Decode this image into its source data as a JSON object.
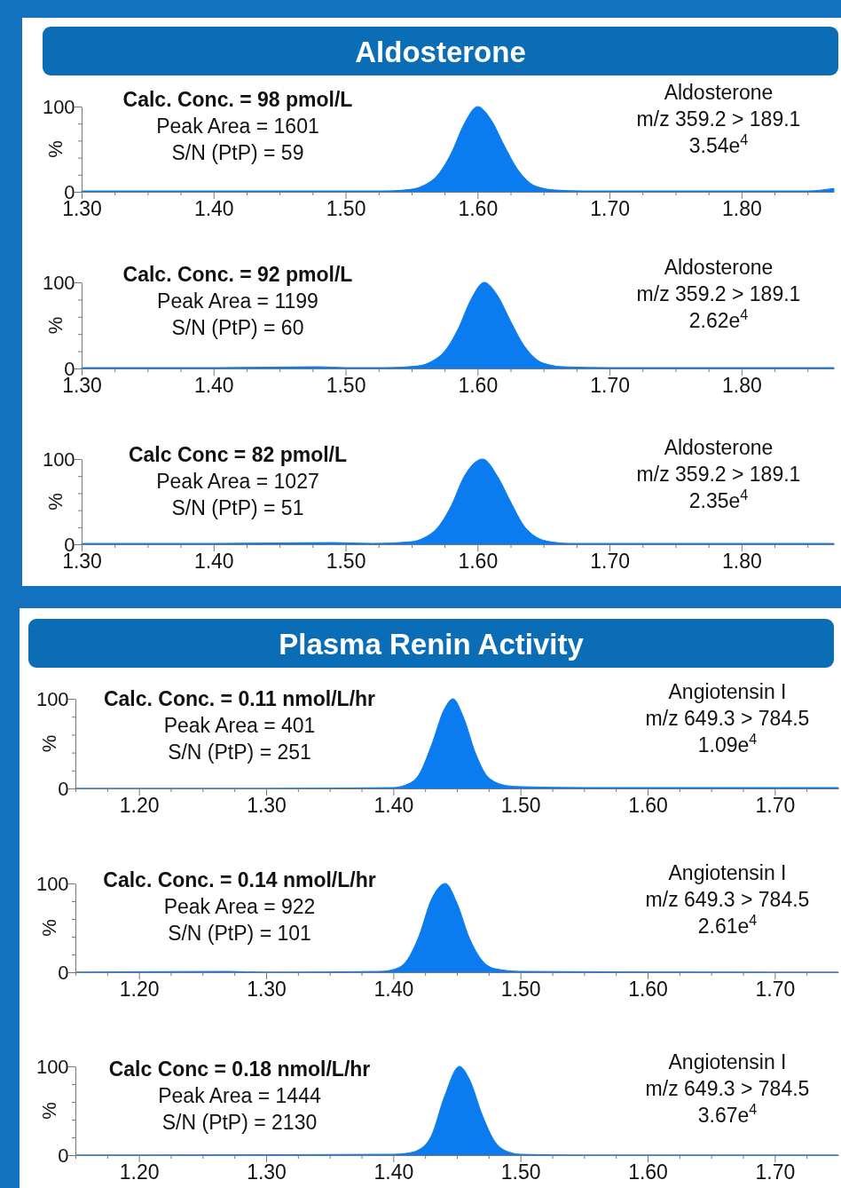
{
  "chart_data": [
    {
      "type": "area",
      "title": "Aldosterone",
      "ylabel": "%",
      "xlim": [
        1.3,
        1.87
      ],
      "ylim": [
        0,
        100
      ],
      "xticks": [
        {
          "value": 1.3,
          "label": "1.30"
        },
        {
          "value": 1.325,
          "label": null
        },
        {
          "value": 1.35,
          "label": null
        },
        {
          "value": 1.375,
          "label": null
        },
        {
          "value": 1.4,
          "label": "1.40"
        },
        {
          "value": 1.425,
          "label": null
        },
        {
          "value": 1.45,
          "label": null
        },
        {
          "value": 1.475,
          "label": null
        },
        {
          "value": 1.5,
          "label": "1.50"
        },
        {
          "value": 1.525,
          "label": null
        },
        {
          "value": 1.55,
          "label": null
        },
        {
          "value": 1.575,
          "label": null
        },
        {
          "value": 1.6,
          "label": "1.60"
        },
        {
          "value": 1.625,
          "label": null
        },
        {
          "value": 1.65,
          "label": null
        },
        {
          "value": 1.675,
          "label": null
        },
        {
          "value": 1.7,
          "label": "1.70"
        },
        {
          "value": 1.725,
          "label": null
        },
        {
          "value": 1.75,
          "label": null
        },
        {
          "value": 1.775,
          "label": null
        },
        {
          "value": 1.8,
          "label": "1.80"
        },
        {
          "value": 1.825,
          "label": null
        },
        {
          "value": 1.85,
          "label": null
        }
      ],
      "yticks": [
        {
          "value": 0,
          "label": "0"
        },
        {
          "value": 20,
          "label": null
        },
        {
          "value": 40,
          "label": null
        },
        {
          "value": 60,
          "label": null
        },
        {
          "value": 80,
          "label": null
        },
        {
          "value": 100,
          "label": "100"
        }
      ],
      "annotations": [
        "Calc. Conc. = 98 pmol/L",
        "Peak Area = 1601",
        "S/N (PtP) = 59",
        "Aldosterone",
        "m/z 359.2 > 189.1",
        "3.54e$^{4}$"
      ],
      "series": [
        {
          "color": "#0b7cf0",
          "x": [
            1.3,
            1.4,
            1.5,
            1.53,
            1.55,
            1.56,
            1.57,
            1.58,
            1.59,
            1.6,
            1.61,
            1.62,
            1.63,
            1.64,
            1.65,
            1.66,
            1.68,
            1.7,
            1.8,
            1.85,
            1.87
          ],
          "values": [
            1,
            1,
            1,
            1,
            3,
            8,
            20,
            45,
            80,
            100,
            85,
            55,
            27,
            10,
            4,
            2,
            1,
            1,
            1,
            1,
            4
          ]
        }
      ]
    },
    {
      "type": "area",
      "ylabel": "%",
      "xlim": [
        1.3,
        1.87
      ],
      "ylim": [
        0,
        100
      ],
      "xticks": [
        {
          "value": 1.3,
          "label": "1.30"
        },
        {
          "value": 1.325,
          "label": null
        },
        {
          "value": 1.35,
          "label": null
        },
        {
          "value": 1.375,
          "label": null
        },
        {
          "value": 1.4,
          "label": "1.40"
        },
        {
          "value": 1.425,
          "label": null
        },
        {
          "value": 1.45,
          "label": null
        },
        {
          "value": 1.475,
          "label": null
        },
        {
          "value": 1.5,
          "label": "1.50"
        },
        {
          "value": 1.525,
          "label": null
        },
        {
          "value": 1.55,
          "label": null
        },
        {
          "value": 1.575,
          "label": null
        },
        {
          "value": 1.6,
          "label": "1.60"
        },
        {
          "value": 1.625,
          "label": null
        },
        {
          "value": 1.65,
          "label": null
        },
        {
          "value": 1.675,
          "label": null
        },
        {
          "value": 1.7,
          "label": "1.70"
        },
        {
          "value": 1.725,
          "label": null
        },
        {
          "value": 1.75,
          "label": null
        },
        {
          "value": 1.775,
          "label": null
        },
        {
          "value": 1.8,
          "label": "1.80"
        },
        {
          "value": 1.825,
          "label": null
        },
        {
          "value": 1.85,
          "label": null
        }
      ],
      "yticks": [
        {
          "value": 0,
          "label": "0"
        },
        {
          "value": 20,
          "label": null
        },
        {
          "value": 40,
          "label": null
        },
        {
          "value": 60,
          "label": null
        },
        {
          "value": 80,
          "label": null
        },
        {
          "value": 100,
          "label": "100"
        }
      ],
      "annotations": [
        "Calc. Conc. = 92 pmol/L",
        "Peak Area = 1199",
        "S/N (PtP) = 60",
        "Aldosterone",
        "m/z 359.2 > 189.1",
        "2.62e$^{4}$"
      ],
      "series": [
        {
          "color": "#0b7cf0",
          "x": [
            1.3,
            1.4,
            1.48,
            1.5,
            1.53,
            1.555,
            1.565,
            1.575,
            1.585,
            1.595,
            1.605,
            1.615,
            1.625,
            1.635,
            1.645,
            1.655,
            1.665,
            1.7,
            1.8,
            1.87
          ],
          "values": [
            1,
            1,
            2,
            1,
            1,
            3,
            8,
            20,
            45,
            80,
            100,
            85,
            55,
            27,
            10,
            4,
            2,
            1,
            1,
            1
          ]
        }
      ]
    },
    {
      "type": "area",
      "ylabel": "%",
      "xlim": [
        1.3,
        1.87
      ],
      "ylim": [
        0,
        100
      ],
      "xticks": [
        {
          "value": 1.3,
          "label": "1.30"
        },
        {
          "value": 1.325,
          "label": null
        },
        {
          "value": 1.35,
          "label": null
        },
        {
          "value": 1.375,
          "label": null
        },
        {
          "value": 1.4,
          "label": "1.40"
        },
        {
          "value": 1.425,
          "label": null
        },
        {
          "value": 1.45,
          "label": null
        },
        {
          "value": 1.475,
          "label": null
        },
        {
          "value": 1.5,
          "label": "1.50"
        },
        {
          "value": 1.525,
          "label": null
        },
        {
          "value": 1.55,
          "label": null
        },
        {
          "value": 1.575,
          "label": null
        },
        {
          "value": 1.6,
          "label": "1.60"
        },
        {
          "value": 1.625,
          "label": null
        },
        {
          "value": 1.65,
          "label": null
        },
        {
          "value": 1.675,
          "label": null
        },
        {
          "value": 1.7,
          "label": "1.70"
        },
        {
          "value": 1.725,
          "label": null
        },
        {
          "value": 1.75,
          "label": null
        },
        {
          "value": 1.775,
          "label": null
        },
        {
          "value": 1.8,
          "label": "1.80"
        },
        {
          "value": 1.825,
          "label": null
        },
        {
          "value": 1.85,
          "label": null
        }
      ],
      "yticks": [
        {
          "value": 0,
          "label": "0"
        },
        {
          "value": 20,
          "label": null
        },
        {
          "value": 40,
          "label": null
        },
        {
          "value": 60,
          "label": null
        },
        {
          "value": 80,
          "label": null
        },
        {
          "value": 100,
          "label": "100"
        }
      ],
      "annotations": [
        "Calc Conc = 82 pmol/L",
        "Peak Area = 1027",
        "S/N (PtP) = 51",
        "Aldosterone",
        "m/z 359.2 > 189.1",
        "2.35e$^{4}$"
      ],
      "series": [
        {
          "color": "#0b7cf0",
          "x": [
            1.3,
            1.4,
            1.49,
            1.52,
            1.55,
            1.56,
            1.57,
            1.58,
            1.59,
            1.604,
            1.615,
            1.625,
            1.635,
            1.645,
            1.655,
            1.67,
            1.7,
            1.8,
            1.87
          ],
          "values": [
            1,
            1,
            2,
            1,
            3,
            8,
            20,
            45,
            80,
            100,
            80,
            50,
            22,
            8,
            3,
            1,
            1,
            1,
            1
          ]
        }
      ]
    },
    {
      "type": "area",
      "title": "Plasma Renin Activity",
      "ylabel": "%",
      "xlim": [
        1.15,
        1.75
      ],
      "ylim": [
        0,
        100
      ],
      "xticks": [
        {
          "value": 1.15,
          "label": null
        },
        {
          "value": 1.175,
          "label": null
        },
        {
          "value": 1.2,
          "label": "1.20"
        },
        {
          "value": 1.225,
          "label": null
        },
        {
          "value": 1.25,
          "label": null
        },
        {
          "value": 1.275,
          "label": null
        },
        {
          "value": 1.3,
          "label": "1.30"
        },
        {
          "value": 1.325,
          "label": null
        },
        {
          "value": 1.35,
          "label": null
        },
        {
          "value": 1.375,
          "label": null
        },
        {
          "value": 1.4,
          "label": "1.40"
        },
        {
          "value": 1.425,
          "label": null
        },
        {
          "value": 1.45,
          "label": null
        },
        {
          "value": 1.475,
          "label": null
        },
        {
          "value": 1.5,
          "label": "1.50"
        },
        {
          "value": 1.525,
          "label": null
        },
        {
          "value": 1.55,
          "label": null
        },
        {
          "value": 1.575,
          "label": null
        },
        {
          "value": 1.6,
          "label": "1.60"
        },
        {
          "value": 1.625,
          "label": null
        },
        {
          "value": 1.65,
          "label": null
        },
        {
          "value": 1.675,
          "label": null
        },
        {
          "value": 1.7,
          "label": "1.70"
        },
        {
          "value": 1.725,
          "label": null
        }
      ],
      "yticks": [
        {
          "value": 0,
          "label": "0"
        },
        {
          "value": 20,
          "label": null
        },
        {
          "value": 40,
          "label": null
        },
        {
          "value": 60,
          "label": null
        },
        {
          "value": 80,
          "label": null
        },
        {
          "value": 100,
          "label": "100"
        }
      ],
      "annotations": [
        "Calc. Conc. = 0.11 nmol/L/hr",
        "Peak Area = 401",
        "S/N (PtP) = 251",
        "Angiotensin I",
        "m/z 649.3 > 784.5",
        "1.09e$^{4}$"
      ],
      "series": [
        {
          "color": "#0b7cf0",
          "x": [
            1.15,
            1.3,
            1.4,
            1.41,
            1.42,
            1.43,
            1.44,
            1.447,
            1.455,
            1.465,
            1.475,
            1.49,
            1.5,
            1.55,
            1.7,
            1.75
          ],
          "values": [
            0,
            0,
            1,
            4,
            15,
            48,
            88,
            100,
            80,
            38,
            12,
            3,
            2,
            1,
            1,
            1
          ]
        }
      ]
    },
    {
      "type": "area",
      "ylabel": "%",
      "xlim": [
        1.15,
        1.75
      ],
      "ylim": [
        0,
        100
      ],
      "xticks": [
        {
          "value": 1.15,
          "label": null
        },
        {
          "value": 1.175,
          "label": null
        },
        {
          "value": 1.2,
          "label": "1.20"
        },
        {
          "value": 1.225,
          "label": null
        },
        {
          "value": 1.25,
          "label": null
        },
        {
          "value": 1.275,
          "label": null
        },
        {
          "value": 1.3,
          "label": "1.30"
        },
        {
          "value": 1.325,
          "label": null
        },
        {
          "value": 1.35,
          "label": null
        },
        {
          "value": 1.375,
          "label": null
        },
        {
          "value": 1.4,
          "label": "1.40"
        },
        {
          "value": 1.425,
          "label": null
        },
        {
          "value": 1.45,
          "label": null
        },
        {
          "value": 1.475,
          "label": null
        },
        {
          "value": 1.5,
          "label": "1.50"
        },
        {
          "value": 1.525,
          "label": null
        },
        {
          "value": 1.55,
          "label": null
        },
        {
          "value": 1.575,
          "label": null
        },
        {
          "value": 1.6,
          "label": "1.60"
        },
        {
          "value": 1.625,
          "label": null
        },
        {
          "value": 1.65,
          "label": null
        },
        {
          "value": 1.675,
          "label": null
        },
        {
          "value": 1.7,
          "label": "1.70"
        },
        {
          "value": 1.725,
          "label": null
        }
      ],
      "yticks": [
        {
          "value": 0,
          "label": "0"
        },
        {
          "value": 20,
          "label": null
        },
        {
          "value": 40,
          "label": null
        },
        {
          "value": 60,
          "label": null
        },
        {
          "value": 80,
          "label": null
        },
        {
          "value": 100,
          "label": "100"
        }
      ],
      "annotations": [
        "Calc. Conc. = 0.14 nmol/L/hr",
        "Peak Area = 922",
        "S/N (PtP) = 101",
        "Angiotensin I",
        "m/z 649.3 > 784.5",
        "2.61e$^{4}$"
      ],
      "series": [
        {
          "color": "#0b7cf0",
          "x": [
            1.15,
            1.27,
            1.3,
            1.39,
            1.4,
            1.41,
            1.42,
            1.43,
            1.441,
            1.45,
            1.46,
            1.47,
            1.48,
            1.5,
            1.7,
            1.75
          ],
          "values": [
            0,
            1,
            0,
            1,
            3,
            12,
            40,
            82,
            100,
            78,
            38,
            13,
            4,
            1,
            0,
            0
          ]
        }
      ]
    },
    {
      "type": "area",
      "ylabel": "%",
      "xlim": [
        1.15,
        1.75
      ],
      "ylim": [
        0,
        100
      ],
      "xticks": [
        {
          "value": 1.15,
          "label": null
        },
        {
          "value": 1.175,
          "label": null
        },
        {
          "value": 1.2,
          "label": "1.20"
        },
        {
          "value": 1.225,
          "label": null
        },
        {
          "value": 1.25,
          "label": null
        },
        {
          "value": 1.275,
          "label": null
        },
        {
          "value": 1.3,
          "label": "1.30"
        },
        {
          "value": 1.325,
          "label": null
        },
        {
          "value": 1.35,
          "label": null
        },
        {
          "value": 1.375,
          "label": null
        },
        {
          "value": 1.4,
          "label": "1.40"
        },
        {
          "value": 1.425,
          "label": null
        },
        {
          "value": 1.45,
          "label": null
        },
        {
          "value": 1.475,
          "label": null
        },
        {
          "value": 1.5,
          "label": "1.50"
        },
        {
          "value": 1.525,
          "label": null
        },
        {
          "value": 1.55,
          "label": null
        },
        {
          "value": 1.575,
          "label": null
        },
        {
          "value": 1.6,
          "label": "1.60"
        },
        {
          "value": 1.625,
          "label": null
        },
        {
          "value": 1.65,
          "label": null
        },
        {
          "value": 1.675,
          "label": null
        },
        {
          "value": 1.7,
          "label": "1.70"
        },
        {
          "value": 1.725,
          "label": null
        }
      ],
      "yticks": [
        {
          "value": 0,
          "label": "0"
        },
        {
          "value": 20,
          "label": null
        },
        {
          "value": 40,
          "label": null
        },
        {
          "value": 60,
          "label": null
        },
        {
          "value": 80,
          "label": null
        },
        {
          "value": 100,
          "label": "100"
        }
      ],
      "annotations": [
        "Calc Conc = 0.18 nmol/L/hr",
        "Peak Area = 1444",
        "S/N (PtP) = 2130",
        "Angiotensin I",
        "m/z 649.3 > 784.5",
        "3.67e$^{4}$"
      ],
      "series": [
        {
          "color": "#0b7cf0",
          "x": [
            1.15,
            1.4,
            1.41,
            1.42,
            1.43,
            1.44,
            1.452,
            1.46,
            1.47,
            1.48,
            1.49,
            1.5,
            1.55,
            1.75
          ],
          "values": [
            0,
            1,
            2,
            6,
            22,
            65,
            100,
            85,
            45,
            15,
            4,
            1,
            0,
            0
          ]
        }
      ]
    }
  ]
}
